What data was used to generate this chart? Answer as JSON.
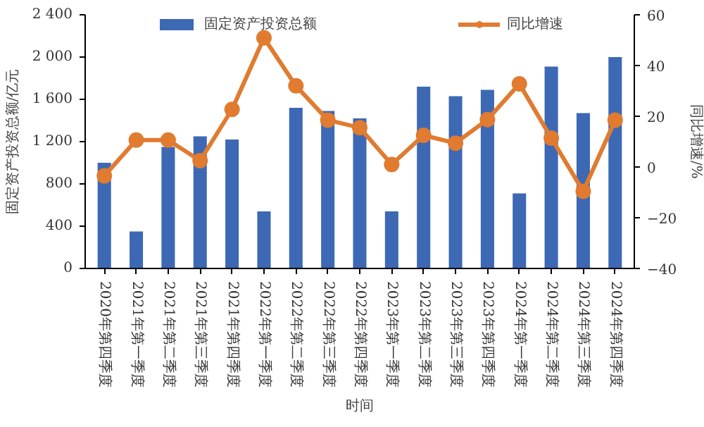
{
  "chart_data": {
    "type": "bar",
    "xlabel": "时间",
    "ylabel": "固定资产投资总额/亿元",
    "y2label": "同比增速/%",
    "categories": [
      "2020年第四季度",
      "2021年第一季度",
      "2021年第二季度",
      "2021年第三季度",
      "2021年第四季度",
      "2022年第一季度",
      "2022年第二季度",
      "2022年第三季度",
      "2022年第四季度",
      "2023年第一季度",
      "2023年第二季度",
      "2023年第三季度",
      "2023年第四季度",
      "2024年第一季度",
      "2024年第二季度",
      "2024年第三季度",
      "2024年第四季度"
    ],
    "series": [
      {
        "name": "固定资产投资总额",
        "color": "#3d68b4",
        "values": [
          1000,
          350,
          1150,
          1250,
          1220,
          540,
          1520,
          1490,
          1420,
          540,
          1720,
          1630,
          1690,
          710,
          1910,
          1470,
          2000
        ]
      },
      {
        "name": "同比增速",
        "type": "line",
        "axis": "y2",
        "color": "#e07b30",
        "marker": "circle",
        "line_style": "solid",
        "values": [
          -3.5,
          10.6,
          10.6,
          2.5,
          22.7,
          50.9,
          32.0,
          18.5,
          15.5,
          1.0,
          12.5,
          9.4,
          18.7,
          32.8,
          11.4,
          -9.6,
          18.5
        ]
      }
    ],
    "ylim": [
      0,
      2400
    ],
    "yticks": [
      0,
      {
        "value": 400,
        "label": "400"
      },
      {
        "value": 800,
        "label": "800"
      },
      {
        "value": 1200,
        "label": "1 200"
      },
      {
        "value": 1600,
        "label": "1 600"
      },
      {
        "value": 2000,
        "label": "2 000"
      },
      {
        "value": 2400,
        "label": "2 400"
      }
    ],
    "y2lim": [
      -40,
      60
    ],
    "y2ticks": [
      {
        "value": -40,
        "label": "−40"
      },
      {
        "value": -20,
        "label": "−20"
      },
      0,
      20,
      40,
      60
    ],
    "grid": false,
    "legend": "top"
  }
}
